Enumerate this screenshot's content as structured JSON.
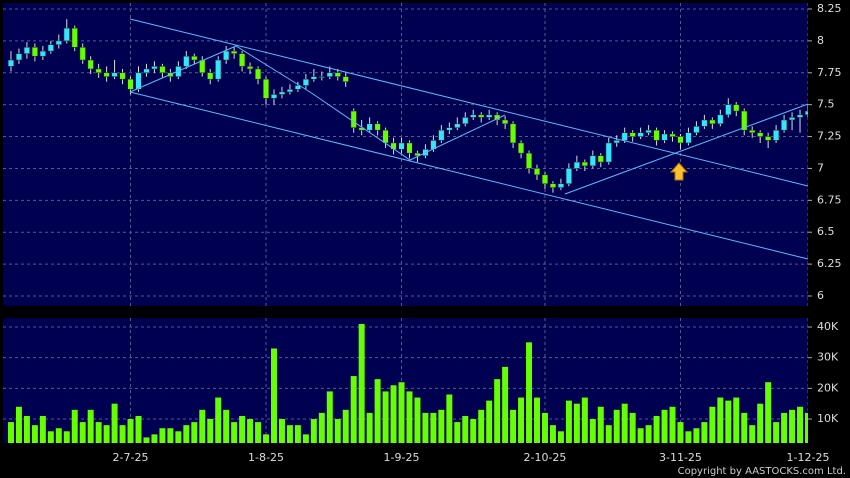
{
  "chart_data": [
    {
      "type": "candlestick",
      "up_color": "#33e5ff",
      "down_color": "#66ff00",
      "grid": true,
      "xlim": [
        -1,
        100
      ],
      "ylim": [
        6,
        8.25
      ],
      "yticks": [
        6,
        6.25,
        6.5,
        6.75,
        7,
        7.25,
        7.5,
        7.75,
        8,
        8.25
      ],
      "ohlc": [
        [
          7.8,
          7.92,
          7.76,
          7.85
        ],
        [
          7.85,
          7.94,
          7.82,
          7.9
        ],
        [
          7.9,
          7.99,
          7.86,
          7.95
        ],
        [
          7.95,
          7.98,
          7.84,
          7.88
        ],
        [
          7.88,
          7.96,
          7.85,
          7.92
        ],
        [
          7.92,
          8.0,
          7.9,
          7.97
        ],
        [
          7.97,
          8.05,
          7.94,
          8.0
        ],
        [
          8.0,
          8.17,
          7.98,
          8.1
        ],
        [
          8.1,
          8.12,
          7.92,
          7.95
        ],
        [
          7.95,
          7.98,
          7.82,
          7.85
        ],
        [
          7.85,
          7.88,
          7.74,
          7.78
        ],
        [
          7.78,
          7.82,
          7.71,
          7.75
        ],
        [
          7.75,
          7.8,
          7.68,
          7.72
        ],
        [
          7.72,
          7.85,
          7.7,
          7.75
        ],
        [
          7.75,
          7.78,
          7.66,
          7.7
        ],
        [
          7.7,
          7.72,
          7.58,
          7.62
        ],
        [
          7.62,
          7.8,
          7.6,
          7.75
        ],
        [
          7.75,
          7.82,
          7.72,
          7.78
        ],
        [
          7.78,
          7.84,
          7.75,
          7.8
        ],
        [
          7.8,
          7.82,
          7.71,
          7.75
        ],
        [
          7.75,
          7.78,
          7.68,
          7.72
        ],
        [
          7.72,
          7.84,
          7.7,
          7.8
        ],
        [
          7.8,
          7.92,
          7.78,
          7.88
        ],
        [
          7.88,
          7.9,
          7.82,
          7.85
        ],
        [
          7.85,
          7.88,
          7.72,
          7.75
        ],
        [
          7.75,
          7.78,
          7.66,
          7.7
        ],
        [
          7.7,
          7.88,
          7.68,
          7.85
        ],
        [
          7.85,
          7.96,
          7.82,
          7.92
        ],
        [
          7.92,
          7.95,
          7.86,
          7.9
        ],
        [
          7.9,
          7.92,
          7.76,
          7.8
        ],
        [
          7.8,
          7.83,
          7.74,
          7.78
        ],
        [
          7.78,
          7.8,
          7.66,
          7.7
        ],
        [
          7.7,
          7.72,
          7.5,
          7.55
        ],
        [
          7.55,
          7.62,
          7.5,
          7.58
        ],
        [
          7.58,
          7.64,
          7.55,
          7.6
        ],
        [
          7.6,
          7.66,
          7.58,
          7.62
        ],
        [
          7.62,
          7.68,
          7.6,
          7.65
        ],
        [
          7.65,
          7.74,
          7.62,
          7.7
        ],
        [
          7.7,
          7.78,
          7.68,
          7.72
        ],
        [
          7.72,
          7.76,
          7.69,
          7.72
        ],
        [
          7.72,
          7.8,
          7.7,
          7.75
        ],
        [
          7.75,
          7.78,
          7.69,
          7.72
        ],
        [
          7.72,
          7.75,
          7.64,
          7.68
        ],
        [
          7.45,
          7.47,
          7.28,
          7.32
        ],
        [
          7.32,
          7.38,
          7.26,
          7.3
        ],
        [
          7.3,
          7.4,
          7.28,
          7.35
        ],
        [
          7.35,
          7.37,
          7.26,
          7.3
        ],
        [
          7.3,
          7.32,
          7.16,
          7.2
        ],
        [
          7.2,
          7.24,
          7.11,
          7.15
        ],
        [
          7.15,
          7.24,
          7.12,
          7.2
        ],
        [
          7.2,
          7.22,
          7.08,
          7.12
        ],
        [
          7.12,
          7.14,
          7.05,
          7.1
        ],
        [
          7.1,
          7.19,
          7.08,
          7.15
        ],
        [
          7.15,
          7.26,
          7.13,
          7.22
        ],
        [
          7.22,
          7.34,
          7.2,
          7.3
        ],
        [
          7.3,
          7.36,
          7.27,
          7.32
        ],
        [
          7.32,
          7.4,
          7.3,
          7.35
        ],
        [
          7.35,
          7.44,
          7.33,
          7.4
        ],
        [
          7.4,
          7.46,
          7.38,
          7.42
        ],
        [
          7.42,
          7.44,
          7.36,
          7.4
        ],
        [
          7.4,
          7.46,
          7.38,
          7.42
        ],
        [
          7.42,
          7.44,
          7.34,
          7.38
        ],
        [
          7.38,
          7.41,
          7.31,
          7.35
        ],
        [
          7.35,
          7.37,
          7.16,
          7.2
        ],
        [
          7.2,
          7.22,
          7.08,
          7.12
        ],
        [
          7.12,
          7.14,
          6.96,
          7.0
        ],
        [
          7.0,
          7.03,
          6.91,
          6.95
        ],
        [
          6.95,
          6.97,
          6.84,
          6.88
        ],
        [
          6.88,
          6.9,
          6.81,
          6.85
        ],
        [
          6.85,
          6.92,
          6.83,
          6.88
        ],
        [
          6.88,
          7.04,
          6.86,
          7.0
        ],
        [
          7.0,
          7.1,
          6.98,
          7.05
        ],
        [
          7.05,
          7.07,
          6.98,
          7.02
        ],
        [
          7.02,
          7.14,
          7.0,
          7.1
        ],
        [
          7.1,
          7.12,
          7.01,
          7.05
        ],
        [
          7.05,
          7.24,
          7.03,
          7.2
        ],
        [
          7.2,
          7.26,
          7.17,
          7.22
        ],
        [
          7.22,
          7.32,
          7.2,
          7.28
        ],
        [
          7.28,
          7.3,
          7.21,
          7.25
        ],
        [
          7.25,
          7.32,
          7.23,
          7.28
        ],
        [
          7.28,
          7.34,
          7.26,
          7.3
        ],
        [
          7.3,
          7.32,
          7.18,
          7.22
        ],
        [
          7.22,
          7.3,
          7.2,
          7.27
        ],
        [
          7.27,
          7.29,
          7.21,
          7.25
        ],
        [
          7.25,
          7.27,
          7.15,
          7.2
        ],
        [
          7.2,
          7.32,
          7.18,
          7.28
        ],
        [
          7.28,
          7.37,
          7.26,
          7.33
        ],
        [
          7.33,
          7.42,
          7.31,
          7.38
        ],
        [
          7.38,
          7.4,
          7.31,
          7.35
        ],
        [
          7.35,
          7.46,
          7.33,
          7.42
        ],
        [
          7.42,
          7.55,
          7.4,
          7.5
        ],
        [
          7.5,
          7.52,
          7.41,
          7.45
        ],
        [
          7.45,
          7.47,
          7.26,
          7.3
        ],
        [
          7.3,
          7.33,
          7.24,
          7.28
        ],
        [
          7.28,
          7.3,
          7.2,
          7.25
        ],
        [
          7.25,
          7.28,
          7.16,
          7.22
        ],
        [
          7.22,
          7.34,
          7.2,
          7.3
        ],
        [
          7.3,
          7.42,
          7.28,
          7.38
        ],
        [
          7.38,
          7.44,
          7.3,
          7.4
        ],
        [
          7.4,
          7.46,
          7.28,
          7.42
        ],
        [
          7.42,
          7.5,
          7.4,
          7.45
        ]
      ]
    },
    {
      "type": "bar",
      "color": "#66ff00",
      "grid": true,
      "xlim": [
        -1,
        100
      ],
      "ylim": [
        0,
        40000
      ],
      "yticks": [
        {
          "value": 10000,
          "label": "10K"
        },
        {
          "value": 20000,
          "label": "20K"
        },
        {
          "value": 30000,
          "label": "30K"
        },
        {
          "value": 40000,
          "label": "40K"
        }
      ],
      "xticks": [
        {
          "value": 15,
          "label": "2-7-25"
        },
        {
          "value": 32,
          "label": "1-8-25"
        },
        {
          "value": 49,
          "label": "1-9-25"
        },
        {
          "value": 67,
          "label": "2-10-25"
        },
        {
          "value": 84,
          "label": "3-11-25"
        },
        {
          "value": 100,
          "label": "1-12-25"
        }
      ],
      "values": [
        9000,
        14000,
        11000,
        8000,
        11000,
        6000,
        7000,
        6000,
        13000,
        9000,
        13000,
        9000,
        8000,
        15000,
        8000,
        10000,
        11000,
        4000,
        5000,
        7000,
        7000,
        6000,
        8000,
        9000,
        13000,
        10000,
        17000,
        13000,
        9000,
        11000,
        10000,
        9000,
        5000,
        33000,
        10000,
        8000,
        8000,
        5000,
        10000,
        12000,
        19000,
        10000,
        13000,
        24000,
        41000,
        12000,
        23000,
        19000,
        21000,
        22000,
        19000,
        17000,
        12000,
        12000,
        13000,
        18000,
        9000,
        11000,
        10000,
        13000,
        16000,
        23000,
        27000,
        13000,
        17000,
        35000,
        17000,
        12000,
        8000,
        6000,
        16000,
        15000,
        17000,
        10000,
        14000,
        8000,
        13000,
        15000,
        12000,
        7000,
        8000,
        11000,
        13000,
        14000,
        9000,
        6000,
        7000,
        9000,
        14000,
        17000,
        16000,
        17000,
        12000,
        8000,
        15000,
        22000,
        9000,
        12000,
        13000,
        14000,
        12000
      ]
    }
  ],
  "copyright": "Copyright by AASTOCKS.com Ltd."
}
